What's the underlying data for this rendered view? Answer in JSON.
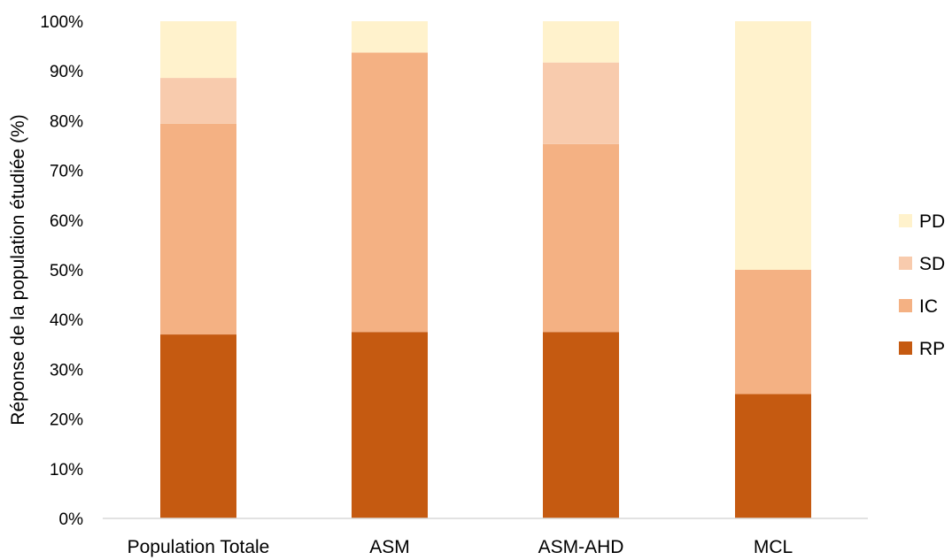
{
  "chart_data": {
    "type": "bar",
    "stacked": true,
    "categories": [
      "Population Totale",
      "ASM",
      "ASM-AHD",
      "MCL"
    ],
    "series": [
      {
        "name": "RP",
        "values": [
          37,
          37.5,
          37.5,
          25
        ],
        "color": "#c55a11"
      },
      {
        "name": "IC",
        "values": [
          42.4,
          56.2,
          37.8,
          25
        ],
        "color": "#f4b183"
      },
      {
        "name": "SD",
        "values": [
          9.2,
          0,
          16.4,
          0
        ],
        "color": "#f8cbad"
      },
      {
        "name": "PD",
        "values": [
          11.4,
          6.3,
          8.3,
          50
        ],
        "color": "#fff2cc"
      }
    ],
    "ylabel": "Réponse de la population étudiée (%)",
    "xlabel": "",
    "ylim": [
      0,
      100
    ],
    "yticks": [
      "0%",
      "10%",
      "20%",
      "30%",
      "40%",
      "50%",
      "60%",
      "70%",
      "80%",
      "90%",
      "100%"
    ],
    "legend_order": [
      "PD",
      "SD",
      "IC",
      "RP"
    ],
    "legend_position": "right",
    "grid": false
  }
}
